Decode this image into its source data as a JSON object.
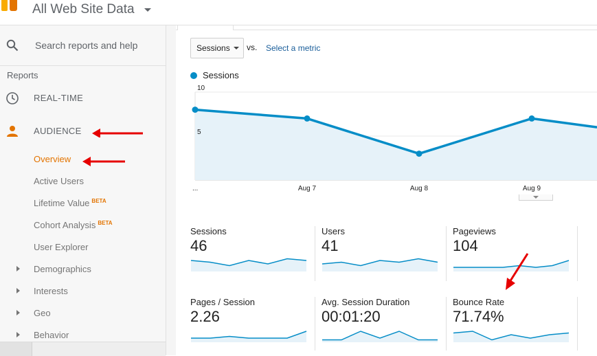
{
  "header": {
    "property": "All Web Site Data"
  },
  "sidebar": {
    "search_placeholder": "Search reports and help",
    "section_label": "Reports",
    "realtime": "REAL-TIME",
    "audience": "AUDIENCE",
    "sub_items": {
      "overview": "Overview",
      "active_users": "Active Users",
      "lifetime_value": "Lifetime Value",
      "cohort_analysis": "Cohort Analysis",
      "user_explorer": "User Explorer",
      "demographics": "Demographics",
      "interests": "Interests",
      "geo": "Geo",
      "behavior": "Behavior"
    },
    "beta": "BETA"
  },
  "chart_controls": {
    "metric": "Sessions",
    "vs": "vs.",
    "select_metric": "Select a metric"
  },
  "chart_data": {
    "type": "area",
    "series": [
      {
        "name": "Sessions",
        "values": [
          8,
          7,
          3,
          7,
          6
        ]
      }
    ],
    "categories": [
      "...",
      "Aug 7",
      "Aug 8",
      "Aug 9",
      ""
    ],
    "y_ticks": [
      "10",
      "5"
    ],
    "ylim": [
      0,
      10
    ],
    "color": "#058dc7",
    "fill": "#e6f2f9"
  },
  "stats": [
    {
      "label": "Sessions",
      "value": "46",
      "spark": [
        6,
        5,
        3,
        6,
        4,
        7,
        6
      ]
    },
    {
      "label": "Users",
      "value": "41",
      "spark": [
        4,
        5,
        3,
        6,
        5,
        7,
        5
      ]
    },
    {
      "label": "Pageviews",
      "value": "104",
      "spark": [
        2,
        2,
        2,
        2,
        3,
        2,
        3,
        6
      ]
    },
    {
      "label": "Pages / Session",
      "value": "2.26",
      "spark": [
        2,
        2,
        3,
        2,
        2,
        2,
        6
      ]
    },
    {
      "label": "Avg. Session Duration",
      "value": "00:01:20",
      "spark": [
        1,
        1,
        6,
        2,
        6,
        1,
        1
      ]
    },
    {
      "label": "Bounce Rate",
      "value": "71.74%",
      "spark": [
        5,
        6,
        1,
        4,
        2,
        4,
        5
      ]
    }
  ],
  "colors": {
    "accent": "#e37400",
    "arrow": "#e60000",
    "line": "#058dc7"
  }
}
